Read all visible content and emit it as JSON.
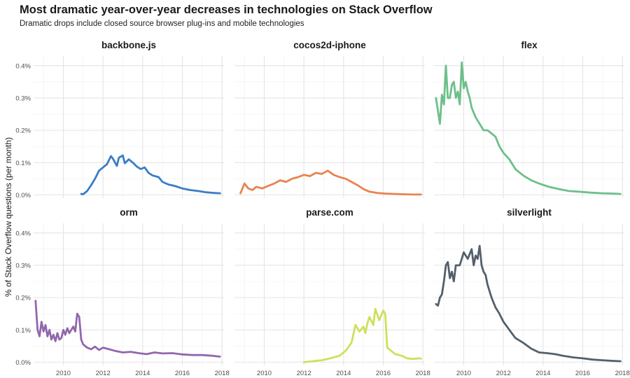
{
  "title": "Most dramatic year-over-year decreases in technologies on Stack Overflow",
  "subtitle": "Dramatic drops include closed source browser plug-ins and mobile technologies",
  "chart_data": {
    "type": "line",
    "facets": true,
    "ylabel": "% of Stack Overflow questions (per month)",
    "xlabel": "",
    "xlim": [
      2008.5,
      2018.1
    ],
    "ylim": [
      -0.01,
      0.43
    ],
    "x_ticks": [
      2010,
      2012,
      2014,
      2016,
      2018
    ],
    "y_ticks": [
      0,
      0.1,
      0.2,
      0.3,
      0.4
    ],
    "y_tick_labels": [
      "0.0%",
      "0.1%",
      "0.2%",
      "0.3%",
      "0.4%"
    ],
    "grid": true,
    "series": [
      {
        "name": "backbone.js",
        "color": "#3a7dc4",
        "x": [
          2010.9,
          2011.0,
          2011.2,
          2011.4,
          2011.6,
          2011.8,
          2012.0,
          2012.2,
          2012.4,
          2012.5,
          2012.7,
          2012.8,
          2013.0,
          2013.1,
          2013.3,
          2013.5,
          2013.7,
          2013.9,
          2014.1,
          2014.3,
          2014.5,
          2014.8,
          2015.0,
          2015.3,
          2015.6,
          2016.0,
          2016.4,
          2016.8,
          2017.2,
          2017.6,
          2017.9
        ],
        "values": [
          0.003,
          0.002,
          0.012,
          0.03,
          0.05,
          0.075,
          0.085,
          0.095,
          0.12,
          0.112,
          0.09,
          0.115,
          0.122,
          0.098,
          0.11,
          0.1,
          0.088,
          0.08,
          0.085,
          0.068,
          0.06,
          0.055,
          0.04,
          0.032,
          0.028,
          0.02,
          0.015,
          0.012,
          0.008,
          0.006,
          0.005
        ]
      },
      {
        "name": "cocos2d-iphone",
        "color": "#e8834f",
        "x": [
          2008.8,
          2009.0,
          2009.2,
          2009.4,
          2009.6,
          2009.9,
          2010.2,
          2010.5,
          2010.8,
          2011.1,
          2011.4,
          2011.7,
          2012.0,
          2012.3,
          2012.6,
          2012.9,
          2013.2,
          2013.5,
          2013.8,
          2014.1,
          2014.4,
          2014.7,
          2015.0,
          2015.3,
          2015.7,
          2016.1,
          2016.5,
          2017.0,
          2017.5,
          2017.9
        ],
        "values": [
          0.005,
          0.035,
          0.02,
          0.015,
          0.025,
          0.02,
          0.028,
          0.035,
          0.045,
          0.04,
          0.05,
          0.055,
          0.062,
          0.058,
          0.068,
          0.065,
          0.075,
          0.062,
          0.055,
          0.05,
          0.04,
          0.03,
          0.018,
          0.01,
          0.006,
          0.004,
          0.003,
          0.002,
          0.001,
          0.001
        ]
      },
      {
        "name": "flex",
        "color": "#6dbf8a",
        "x": [
          2008.6,
          2008.8,
          2008.9,
          2009.0,
          2009.1,
          2009.2,
          2009.3,
          2009.4,
          2009.5,
          2009.6,
          2009.7,
          2009.8,
          2009.9,
          2010.0,
          2010.1,
          2010.2,
          2010.3,
          2010.4,
          2010.6,
          2010.8,
          2011.0,
          2011.2,
          2011.4,
          2011.6,
          2011.8,
          2012.0,
          2012.3,
          2012.6,
          2013.0,
          2013.4,
          2013.8,
          2014.3,
          2014.8,
          2015.3,
          2015.8,
          2016.4,
          2017.0,
          2017.5,
          2017.9
        ],
        "values": [
          0.3,
          0.22,
          0.31,
          0.28,
          0.4,
          0.3,
          0.3,
          0.34,
          0.35,
          0.3,
          0.32,
          0.28,
          0.41,
          0.33,
          0.35,
          0.32,
          0.3,
          0.27,
          0.24,
          0.22,
          0.2,
          0.2,
          0.19,
          0.18,
          0.15,
          0.13,
          0.11,
          0.08,
          0.06,
          0.045,
          0.035,
          0.025,
          0.018,
          0.012,
          0.01,
          0.007,
          0.005,
          0.004,
          0.003
        ]
      },
      {
        "name": "orm",
        "color": "#9167ad",
        "x": [
          2008.6,
          2008.7,
          2008.8,
          2008.9,
          2009.0,
          2009.1,
          2009.2,
          2009.3,
          2009.4,
          2009.5,
          2009.6,
          2009.7,
          2009.8,
          2009.9,
          2010.0,
          2010.1,
          2010.2,
          2010.3,
          2010.4,
          2010.5,
          2010.6,
          2010.7,
          2010.8,
          2010.9,
          2011.0,
          2011.2,
          2011.4,
          2011.6,
          2011.8,
          2012.0,
          2012.3,
          2012.6,
          2013.0,
          2013.4,
          2013.8,
          2014.2,
          2014.6,
          2015.0,
          2015.5,
          2016.0,
          2016.5,
          2017.0,
          2017.5,
          2017.9
        ],
        "values": [
          0.19,
          0.1,
          0.08,
          0.125,
          0.095,
          0.115,
          0.08,
          0.1,
          0.07,
          0.085,
          0.065,
          0.09,
          0.07,
          0.075,
          0.1,
          0.085,
          0.105,
          0.09,
          0.1,
          0.11,
          0.095,
          0.15,
          0.14,
          0.07,
          0.055,
          0.045,
          0.04,
          0.048,
          0.038,
          0.045,
          0.04,
          0.035,
          0.03,
          0.032,
          0.028,
          0.025,
          0.03,
          0.027,
          0.028,
          0.024,
          0.022,
          0.022,
          0.02,
          0.017
        ]
      },
      {
        "name": "parse.com",
        "color": "#cfe05a",
        "x": [
          2012.0,
          2012.3,
          2012.6,
          2012.9,
          2013.2,
          2013.5,
          2013.8,
          2014.1,
          2014.4,
          2014.6,
          2014.8,
          2015.0,
          2015.1,
          2015.2,
          2015.3,
          2015.5,
          2015.6,
          2015.8,
          2016.0,
          2016.1,
          2016.2,
          2016.4,
          2016.6,
          2016.8,
          2017.0,
          2017.2,
          2017.5,
          2017.8,
          2017.9
        ],
        "values": [
          0.0,
          0.002,
          0.004,
          0.006,
          0.01,
          0.015,
          0.02,
          0.035,
          0.06,
          0.115,
          0.095,
          0.11,
          0.09,
          0.12,
          0.14,
          0.115,
          0.165,
          0.13,
          0.16,
          0.15,
          0.045,
          0.035,
          0.025,
          0.022,
          0.018,
          0.012,
          0.01,
          0.012,
          0.011
        ]
      },
      {
        "name": "silverlight",
        "color": "#545f6c",
        "x": [
          2008.6,
          2008.7,
          2008.8,
          2008.9,
          2009.0,
          2009.1,
          2009.2,
          2009.3,
          2009.4,
          2009.5,
          2009.6,
          2009.8,
          2010.0,
          2010.2,
          2010.4,
          2010.5,
          2010.6,
          2010.7,
          2010.8,
          2010.9,
          2011.0,
          2011.1,
          2011.2,
          2011.4,
          2011.6,
          2011.8,
          2012.0,
          2012.3,
          2012.6,
          2013.0,
          2013.4,
          2013.8,
          2014.2,
          2014.6,
          2015.0,
          2015.5,
          2016.0,
          2016.5,
          2017.0,
          2017.5,
          2017.9
        ],
        "values": [
          0.18,
          0.175,
          0.2,
          0.21,
          0.25,
          0.3,
          0.31,
          0.26,
          0.28,
          0.25,
          0.3,
          0.3,
          0.34,
          0.32,
          0.35,
          0.3,
          0.33,
          0.32,
          0.36,
          0.3,
          0.28,
          0.27,
          0.24,
          0.2,
          0.17,
          0.15,
          0.125,
          0.1,
          0.075,
          0.06,
          0.042,
          0.03,
          0.028,
          0.025,
          0.02,
          0.015,
          0.012,
          0.008,
          0.006,
          0.004,
          0.003
        ]
      }
    ]
  }
}
